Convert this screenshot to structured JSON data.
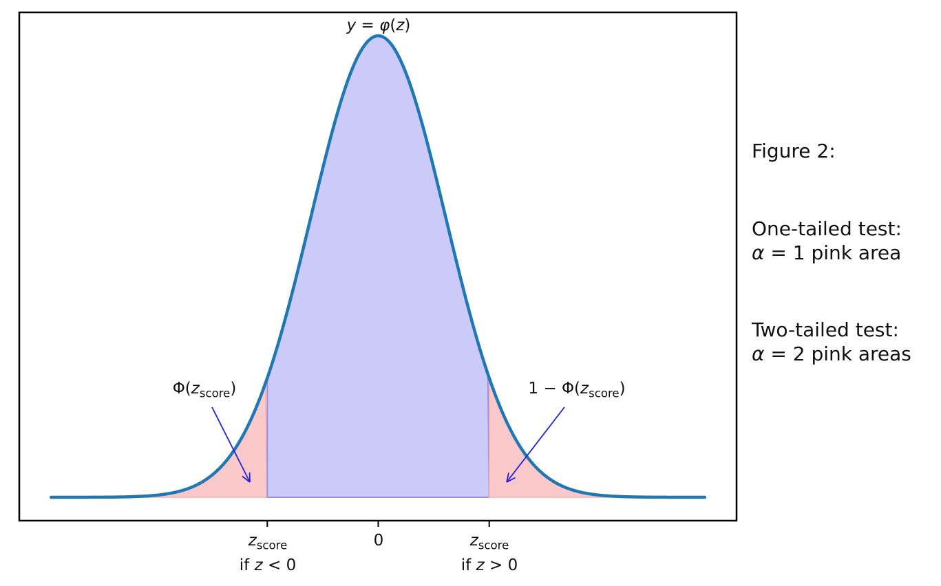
{
  "chart_data": {
    "type": "area",
    "description": "Standard normal probability density function with central acceptance region (blue) and rejection tail regions (pink) at the critical z-score",
    "title_parts": {
      "y": "y",
      "eq": " = ",
      "phi": "φ",
      "open": "(",
      "z": "z",
      "close": ")"
    },
    "curve": {
      "function": "gaussian",
      "mean": 0,
      "sd": 1,
      "normalized_peak": 1
    },
    "x_range": [
      -4.85,
      4.85
    ],
    "critical_z": 1.645,
    "grid": false,
    "legend": false,
    "regions": [
      {
        "name": "left-tail",
        "from_z": -4.85,
        "to_z": -1.645,
        "fill": "#fbc9c9",
        "meaning": "Φ(z_score)"
      },
      {
        "name": "center",
        "from_z": -1.645,
        "to_z": 1.645,
        "fill": "#cbcaf9",
        "meaning": "central (non-rejection) area"
      },
      {
        "name": "right-tail",
        "from_z": 1.645,
        "to_z": 4.85,
        "fill": "#fbc9c9",
        "meaning": "1 − Φ(z_score)"
      }
    ],
    "x_ticks": [
      {
        "z": -1.645,
        "line1_var": "z",
        "line1_sub": "score",
        "line2_pre": "if ",
        "line2_var": "z",
        "line2_post": " < 0"
      },
      {
        "z": 0,
        "label": "0"
      },
      {
        "z": 1.645,
        "line1_var": "z",
        "line1_sub": "score",
        "line2_pre": "if ",
        "line2_var": "z",
        "line2_post": " > 0"
      }
    ],
    "annotations": [
      {
        "pre": "Φ(",
        "var": "z",
        "sub": "score",
        "post": ")",
        "text_center_x": 297,
        "text_top": 552,
        "arrow": [
          308,
          592,
          363,
          701
        ]
      },
      {
        "pre": "1 − Φ(",
        "var": "z",
        "sub": "score",
        "post": ")",
        "text_center_x": 838,
        "text_top": 552,
        "arrow": [
          820,
          592,
          736,
          701
        ]
      }
    ]
  },
  "side_panel": {
    "figure_label": "Figure 2:",
    "one_tailed": {
      "line1": "One-tailed test:",
      "line2_var": "α",
      "line2_rest": " = 1 pink area"
    },
    "two_tailed": {
      "line1": "Two-tailed test:",
      "line2_var": "α",
      "line2_rest": " = 2 pink areas"
    }
  },
  "colors": {
    "curve": "#1f77b4",
    "center_fill": "#cbcaf9",
    "center_edge": "#9c90e4",
    "tail_fill": "#fbc9c9",
    "tail_edge": "#f5adad",
    "arrow": "#2020dd",
    "axis": "#000000"
  }
}
